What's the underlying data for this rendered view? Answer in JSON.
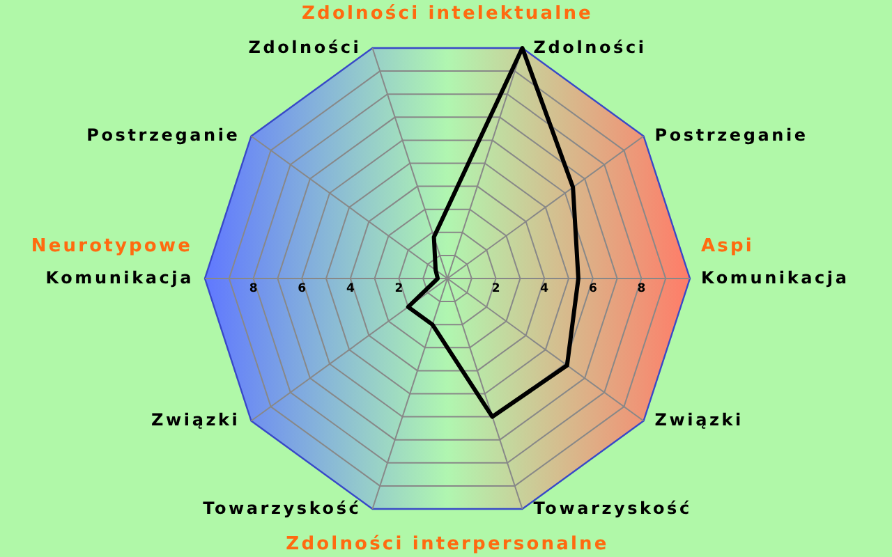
{
  "chart_data": {
    "type": "radar",
    "title": "Zdolności intelektualne",
    "annotations": [
      "Zdolności interpersonalne",
      "Neurotypowe",
      "Aspi"
    ],
    "categories": [
      "Zdolności",
      "Postrzeganie",
      "Komunikacja",
      "Związki",
      "Towarzyskość",
      "Towarzyskość",
      "Związki",
      "Komunikacja",
      "Postrzeganie",
      "Zdolności"
    ],
    "series": [
      {
        "color": "#000000",
        "values": [
          10,
          6.4,
          5.4,
          6.1,
          6.0,
          2.0,
          2.0,
          0.4,
          0.6,
          1.8
        ]
      }
    ],
    "ylim": [
      0,
      10
    ],
    "yticks": [
      2,
      4,
      6,
      8,
      2,
      4,
      6,
      8
    ],
    "grid": true
  }
}
